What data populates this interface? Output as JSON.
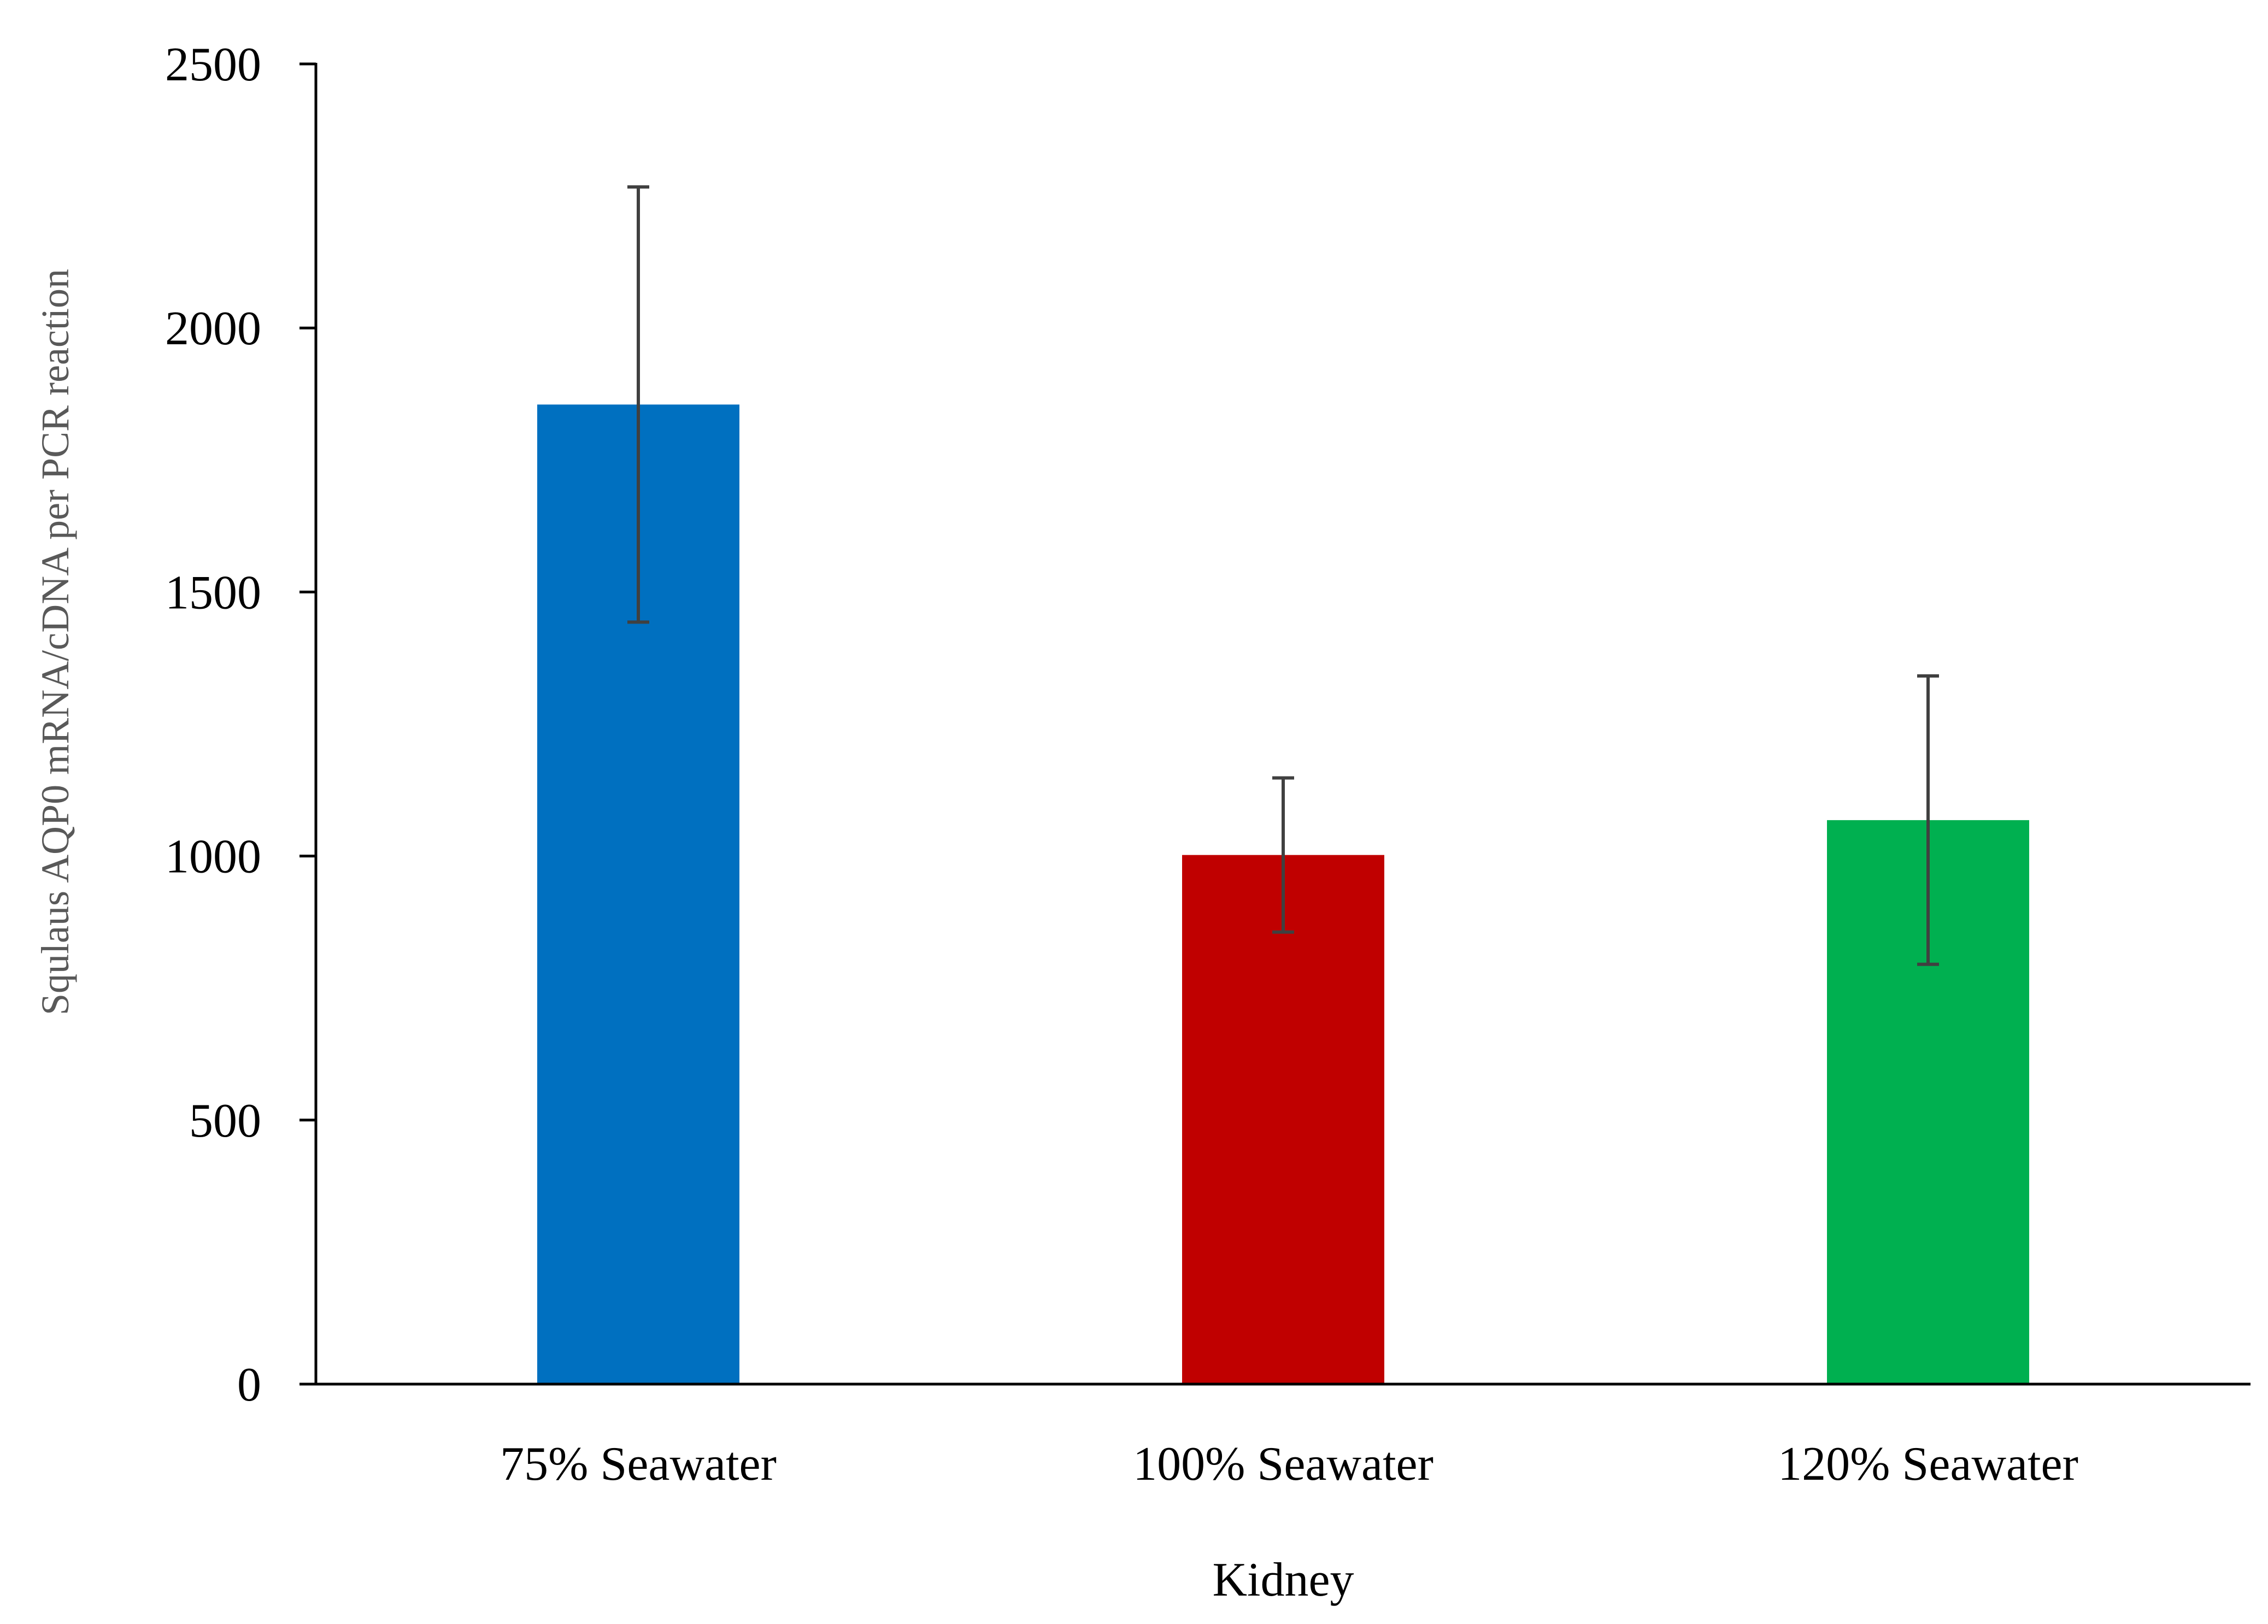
{
  "chart_data": {
    "type": "bar",
    "categories": [
      "75% Seawater",
      "100% Seawater",
      "120% Seawater"
    ],
    "values": [
      1855,
      1002,
      1068
    ],
    "errors": [
      412,
      146,
      273
    ],
    "colors": [
      "#0070C0",
      "#C00000",
      "#00B050"
    ],
    "error_bar_color": "#404040",
    "xlabel": "Kidney",
    "ylabel": "Squlaus AQP0 mRNA/cDNA per PCR reaction",
    "ylim": [
      0,
      2500
    ],
    "yticks": [
      "0",
      "500",
      "1000",
      "1500",
      "2000",
      "2500"
    ],
    "grid": false,
    "legend": "none"
  }
}
